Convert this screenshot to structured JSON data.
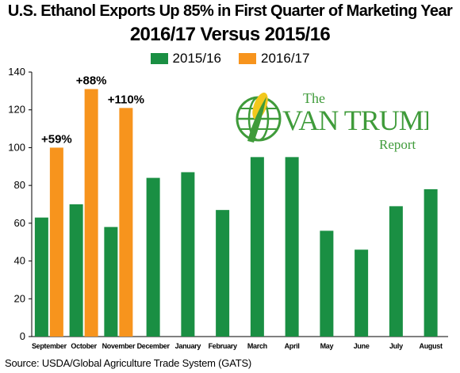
{
  "title": "U.S. Ethanol Exports Up 85% in First Quarter of Marketing Year",
  "subtitle": "2016/17 Versus 2015/16",
  "source": "Source: USDA/Global Agriculture Trade System (GATS)",
  "logo": {
    "line1": "The",
    "line2": "VAN TRUMP",
    "line3": "Report"
  },
  "colors": {
    "series_2015": "#1a8f43",
    "series_2016": "#f7941d",
    "logo_green": "#3f9b3a"
  },
  "chart_data": {
    "type": "bar",
    "categories": [
      "September",
      "October",
      "November",
      "December",
      "January",
      "February",
      "March",
      "April",
      "May",
      "June",
      "July",
      "August"
    ],
    "series": [
      {
        "name": "2015/16",
        "values": [
          63,
          70,
          58,
          84,
          87,
          67,
          95,
          95,
          56,
          46,
          69,
          78
        ]
      },
      {
        "name": "2016/17",
        "values": [
          100,
          131,
          121,
          null,
          null,
          null,
          null,
          null,
          null,
          null,
          null,
          null
        ]
      }
    ],
    "annotations": [
      {
        "category": "September",
        "text": "+59%"
      },
      {
        "category": "October",
        "text": "+88%"
      },
      {
        "category": "November",
        "text": "+110%"
      }
    ],
    "yticks": [
      0,
      20,
      40,
      60,
      80,
      100,
      120,
      140
    ],
    "ylim": [
      0,
      140
    ],
    "xlabel": "",
    "ylabel": "",
    "legend_position": "top-center",
    "grid": false
  }
}
